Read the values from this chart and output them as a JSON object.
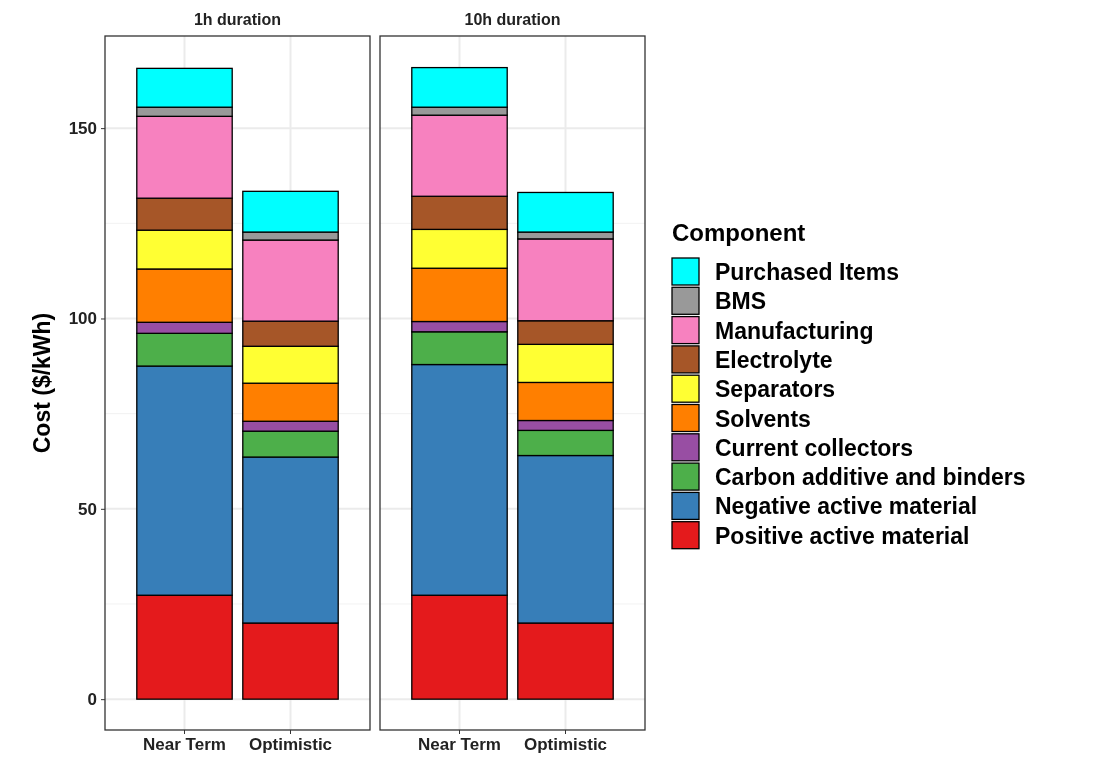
{
  "chart_data": [
    {
      "type": "bar",
      "stacked": true,
      "title": "1h duration",
      "ylabel": "Cost ($/kWh)",
      "categories": [
        "Near Term",
        "Optimistic"
      ],
      "ylim": [
        -8.1,
        174.2
      ],
      "yticks": [
        0,
        50,
        100,
        150
      ],
      "grid": true,
      "legend": false,
      "series": [
        {
          "color": "#e41a1c",
          "values": [
            27.3,
            20.0
          ]
        },
        {
          "color": "#377eb8",
          "values": [
            60.2,
            43.6
          ]
        },
        {
          "color": "#4daf4a",
          "values": [
            8.6,
            6.8
          ]
        },
        {
          "color": "#984ea3",
          "values": [
            2.9,
            2.6
          ]
        },
        {
          "color": "#ff7f00",
          "values": [
            14.0,
            10.0
          ]
        },
        {
          "color": "#ffff33",
          "values": [
            10.2,
            9.7
          ]
        },
        {
          "color": "#a65628",
          "values": [
            8.4,
            6.6
          ]
        },
        {
          "color": "#f781bf",
          "values": [
            21.5,
            21.3
          ]
        },
        {
          "color": "#999999",
          "values": [
            2.4,
            2.1
          ]
        },
        {
          "color": "#00ffff",
          "values": [
            10.2,
            10.7
          ]
        }
      ]
    },
    {
      "type": "bar",
      "stacked": true,
      "title": "10h duration",
      "legend_title": "Component",
      "categories": [
        "Near Term",
        "Optimistic"
      ],
      "ylim": [
        -8.1,
        174.2
      ],
      "yticks": [
        0,
        50,
        100,
        150
      ],
      "grid": true,
      "legend": "right",
      "tick_labels": "x",
      "series": [
        {
          "name": "Positive active material",
          "color": "#e41a1c",
          "values": [
            27.3,
            20.0
          ]
        },
        {
          "name": "Negative active material",
          "color": "#377eb8",
          "values": [
            60.6,
            44.0
          ]
        },
        {
          "name": "Carbon additive and binders",
          "color": "#4daf4a",
          "values": [
            8.6,
            6.6
          ]
        },
        {
          "name": "Current collectors",
          "color": "#984ea3",
          "values": [
            2.7,
            2.6
          ]
        },
        {
          "name": "Solvents",
          "color": "#ff7f00",
          "values": [
            14.0,
            10.0
          ]
        },
        {
          "name": "Separators",
          "color": "#ffff33",
          "values": [
            10.2,
            10.0
          ]
        },
        {
          "name": "Electrolyte",
          "color": "#a65628",
          "values": [
            8.7,
            6.2
          ]
        },
        {
          "name": "Manufacturing",
          "color": "#f781bf",
          "values": [
            21.3,
            21.5
          ]
        },
        {
          "name": "BMS",
          "color": "#999999",
          "values": [
            2.1,
            1.8
          ]
        },
        {
          "name": "Purchased Items",
          "color": "#00ffff",
          "values": [
            10.4,
            10.4
          ]
        }
      ]
    }
  ]
}
